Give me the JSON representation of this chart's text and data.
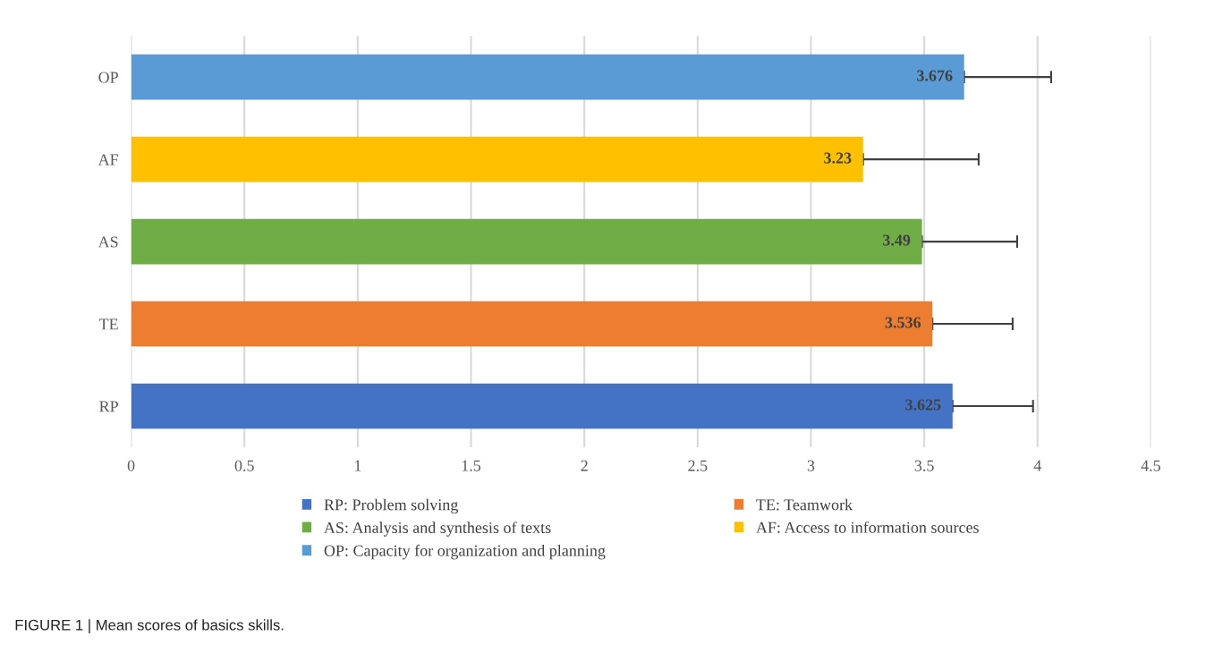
{
  "chart_data": {
    "type": "bar",
    "orientation": "horizontal",
    "categories": [
      "OP",
      "AF",
      "AS",
      "TE",
      "RP"
    ],
    "series": [
      {
        "name": "RP: Problem solving",
        "color": "#4472c4",
        "values": [
          null,
          null,
          null,
          null,
          3.625
        ],
        "errors": [
          null,
          null,
          null,
          null,
          [
            3.625,
            3.98
          ]
        ]
      },
      {
        "name": "TE: Teamwork",
        "color": "#ed7d31",
        "values": [
          null,
          null,
          null,
          3.536,
          null
        ],
        "errors": [
          null,
          null,
          null,
          [
            3.536,
            3.89
          ],
          null
        ]
      },
      {
        "name": "AS: Analysis and synthesis of texts",
        "color": "#70ad47",
        "values": [
          null,
          null,
          3.49,
          null,
          null
        ],
        "errors": [
          null,
          null,
          [
            3.49,
            3.91
          ],
          null,
          null
        ]
      },
      {
        "name": "AF: Access to information sources",
        "color": "#ffc000",
        "values": [
          null,
          3.23,
          null,
          null,
          null
        ],
        "errors": [
          null,
          [
            3.23,
            3.74
          ],
          null,
          null,
          null
        ]
      },
      {
        "name": "OP: Capacity for organization and planning",
        "color": "#5b9bd5",
        "values": [
          3.676,
          null,
          null,
          null,
          null
        ],
        "errors": [
          [
            3.676,
            4.06
          ],
          null,
          null,
          null,
          null
        ]
      }
    ],
    "xlim": [
      0,
      4.5
    ],
    "xticks": [
      0,
      0.5,
      1,
      1.5,
      2,
      2.5,
      3,
      3.5,
      4,
      4.5
    ],
    "grid": "x",
    "legend": "bottom",
    "data_labels": true,
    "annotations": [
      "FIGURE 1 | Mean scores of basics skills."
    ]
  }
}
